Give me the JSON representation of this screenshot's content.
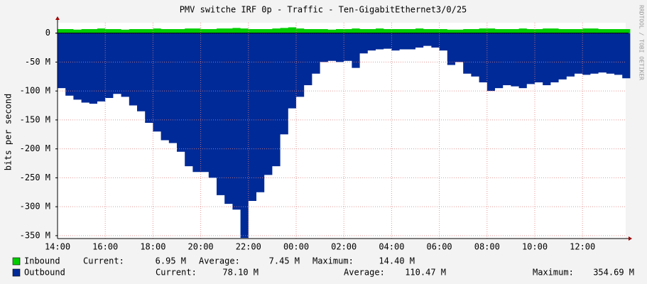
{
  "chart_data": {
    "type": "area",
    "title": "PMV switche IRF 0p - Traffic - Ten-GigabitEthernet3/0/25",
    "y_label": "bits per second",
    "side_text": "RRDTOOL / TOBI OETIKER",
    "categories": [
      "14:00",
      null,
      null,
      null,
      null,
      null,
      "16:00",
      null,
      null,
      null,
      null,
      null,
      "18:00",
      null,
      null,
      null,
      null,
      null,
      "20:00",
      null,
      null,
      null,
      null,
      null,
      "22:00",
      null,
      null,
      null,
      null,
      null,
      "00:00",
      null,
      null,
      null,
      null,
      null,
      "02:00",
      null,
      null,
      null,
      null,
      null,
      "04:00",
      null,
      null,
      null,
      null,
      null,
      "06:00",
      null,
      null,
      null,
      null,
      null,
      "08:00",
      null,
      null,
      null,
      null,
      null,
      "10:00",
      null,
      null,
      null,
      null,
      null,
      "12:00",
      null,
      null,
      null,
      null,
      null
    ],
    "series": [
      {
        "name": "Inbound",
        "color": "#00cc00",
        "border": "#006600",
        "values": [
          7,
          7,
          6,
          7,
          7,
          8,
          7,
          7,
          6,
          7,
          7,
          7,
          8,
          7,
          7,
          7,
          8,
          8,
          7,
          7,
          8,
          8,
          9,
          8,
          7,
          7,
          7,
          8,
          9,
          10,
          8,
          7,
          7,
          7,
          6,
          7,
          7,
          8,
          7,
          7,
          8,
          7,
          7,
          7,
          7,
          8,
          7,
          7,
          7,
          6,
          6,
          7,
          7,
          8,
          8,
          7,
          7,
          7,
          8,
          7,
          7,
          8,
          8,
          7,
          7,
          7,
          8,
          8,
          7,
          7,
          7,
          7
        ]
      },
      {
        "name": "Outbound",
        "color": "#002a97",
        "border": "#001a60",
        "values": [
          -95,
          -108,
          -115,
          -120,
          -122,
          -118,
          -112,
          -105,
          -110,
          -125,
          -135,
          -155,
          -170,
          -185,
          -190,
          -205,
          -230,
          -240,
          -240,
          -250,
          -280,
          -295,
          -305,
          -354,
          -290,
          -275,
          -245,
          -230,
          -175,
          -130,
          -110,
          -90,
          -70,
          -50,
          -48,
          -50,
          -48,
          -60,
          -35,
          -30,
          -28,
          -27,
          -30,
          -28,
          -28,
          -25,
          -22,
          -25,
          -30,
          -55,
          -50,
          -70,
          -75,
          -85,
          -100,
          -95,
          -90,
          -92,
          -95,
          -88,
          -85,
          -90,
          -85,
          -80,
          -75,
          -70,
          -72,
          -70,
          -68,
          -70,
          -72,
          -78
        ]
      }
    ],
    "legend": [
      {
        "stats": [
          [
            "Current:",
            "6.95 M"
          ],
          [
            "Average:",
            "7.45 M"
          ],
          [
            "Maximum:",
            "14.40 M"
          ]
        ]
      },
      {
        "stats": [
          [
            "Current:",
            "78.10 M"
          ],
          [
            "Average:",
            "110.47 M"
          ],
          [
            "Maximum:",
            "354.69 M"
          ]
        ]
      }
    ],
    "ylim": [
      -355,
      18
    ],
    "yticks": [
      {
        "value": 0,
        "label": "0"
      },
      {
        "value": -50,
        "label": "-50 M"
      },
      {
        "value": -100,
        "label": "-100 M"
      },
      {
        "value": -150,
        "label": "-150 M"
      },
      {
        "value": -200,
        "label": "-200 M"
      },
      {
        "value": -250,
        "label": "-250 M"
      },
      {
        "value": -300,
        "label": "-300 M"
      },
      {
        "value": -350,
        "label": "-350 M"
      }
    ],
    "grid": true
  }
}
